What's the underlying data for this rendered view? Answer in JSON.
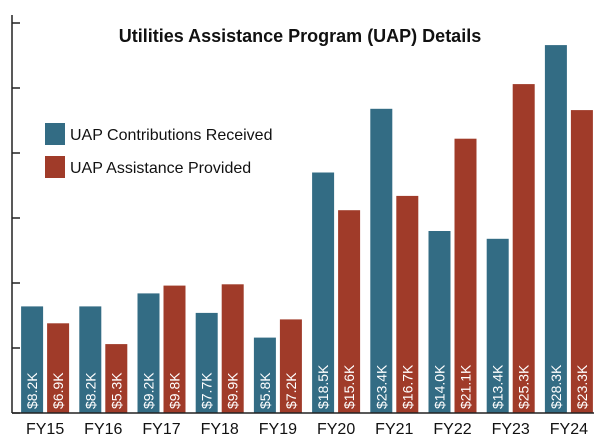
{
  "chart_data": {
    "type": "bar",
    "title": "Utilities Assistance Program (UAP) Details",
    "categories": [
      "FY15",
      "FY16",
      "FY17",
      "FY18",
      "FY19",
      "FY20",
      "FY21",
      "FY22",
      "FY23",
      "FY24"
    ],
    "series": [
      {
        "name": "UAP Contributions Received",
        "color": "#336c84",
        "values": [
          8.2,
          8.2,
          9.2,
          7.7,
          5.8,
          18.5,
          23.4,
          14.0,
          13.4,
          28.3
        ],
        "labels": [
          "$8.2K",
          "$8.2K",
          "$9.2K",
          "$7.7K",
          "$5.8K",
          "$18.5K",
          "$23.4K",
          "$14.0K",
          "$13.4K",
          "$28.3K"
        ]
      },
      {
        "name": "UAP Assistance Provided",
        "color": "#a03b29",
        "values": [
          6.9,
          5.3,
          9.8,
          9.9,
          7.2,
          15.6,
          16.7,
          21.1,
          25.3,
          23.3
        ],
        "labels": [
          "$6.9K",
          "$5.3K",
          "$9.8K",
          "$9.9K",
          "$7.2K",
          "$15.6K",
          "$16.7K",
          "$21.1K",
          "$25.3K",
          "$23.3K"
        ]
      }
    ],
    "ylim": [
      0,
      30
    ],
    "y_tick_step": 5,
    "y_tick_labels_shown": false,
    "grid": false,
    "legend_position": "upper-left",
    "xlabel": "",
    "ylabel": ""
  }
}
